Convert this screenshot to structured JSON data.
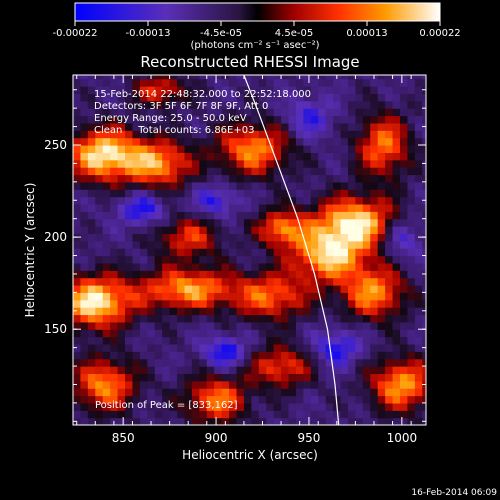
{
  "chart_data": {
    "type": "heatmap",
    "title": "Reconstructed RHESSI Image",
    "xlabel": "Heliocentric X (arcsec)",
    "ylabel": "Heliocentric Y (arcsec)",
    "x_ticks": [
      850,
      900,
      950,
      1000
    ],
    "y_ticks": [
      150,
      200,
      250
    ],
    "xlim": [
      823,
      1013
    ],
    "ylim": [
      98,
      288
    ],
    "colorbar": {
      "range": [
        -0.00022,
        0.00022
      ],
      "tick_labels": [
        "-0.00022",
        "-0.00013",
        "-4.5e-05",
        "4.5e-05",
        "0.00013",
        "0.00022"
      ],
      "units": "(photons cm⁻² s⁻¹ asec⁻²)"
    },
    "annotations": {
      "time_range": "15-Feb-2014 22:48:32.000 to 22:52:18.000",
      "detectors": "Detectors: 3F 5F 6F 7F 8F 9F, Att 0",
      "energy_range": "Energy Range: 25.0 - 50.0 keV",
      "clean": "Clean     Total counts: 6.86E+03",
      "peak": "Position of Peak = [833,162]"
    },
    "limb_curve": [
      [
        915,
        288
      ],
      [
        922,
        270
      ],
      [
        933,
        240
      ],
      [
        944,
        210
      ],
      [
        953,
        180
      ],
      [
        960,
        150
      ],
      [
        964,
        120
      ],
      [
        966,
        98
      ]
    ],
    "blobs": [
      {
        "x": 840,
        "y": 245,
        "sx": 14,
        "sy": 10,
        "a": 1.0
      },
      {
        "x": 870,
        "y": 240,
        "sx": 12,
        "sy": 9,
        "a": 0.75
      },
      {
        "x": 920,
        "y": 248,
        "sx": 14,
        "sy": 10,
        "a": 0.75
      },
      {
        "x": 885,
        "y": 200,
        "sx": 12,
        "sy": 8,
        "a": 0.55
      },
      {
        "x": 935,
        "y": 205,
        "sx": 9,
        "sy": 7,
        "a": 0.7
      },
      {
        "x": 975,
        "y": 208,
        "sx": 16,
        "sy": 10,
        "a": 0.95
      },
      {
        "x": 960,
        "y": 190,
        "sx": 14,
        "sy": 10,
        "a": 0.85
      },
      {
        "x": 990,
        "y": 250,
        "sx": 10,
        "sy": 12,
        "a": 0.7
      },
      {
        "x": 835,
        "y": 165,
        "sx": 14,
        "sy": 10,
        "a": 1.0
      },
      {
        "x": 885,
        "y": 172,
        "sx": 18,
        "sy": 8,
        "a": 0.8
      },
      {
        "x": 930,
        "y": 168,
        "sx": 14,
        "sy": 9,
        "a": 0.65
      },
      {
        "x": 985,
        "y": 170,
        "sx": 12,
        "sy": 10,
        "a": 0.75
      },
      {
        "x": 840,
        "y": 120,
        "sx": 12,
        "sy": 10,
        "a": 0.75
      },
      {
        "x": 900,
        "y": 112,
        "sx": 12,
        "sy": 9,
        "a": 0.7
      },
      {
        "x": 935,
        "y": 130,
        "sx": 12,
        "sy": 8,
        "a": 0.6
      },
      {
        "x": 1000,
        "y": 120,
        "sx": 12,
        "sy": 10,
        "a": 0.8
      },
      {
        "x": 905,
        "y": 138,
        "sx": 8,
        "sy": 6,
        "a": -0.55
      },
      {
        "x": 965,
        "y": 140,
        "sx": 9,
        "sy": 7,
        "a": -0.5
      },
      {
        "x": 900,
        "y": 220,
        "sx": 8,
        "sy": 6,
        "a": -0.45
      },
      {
        "x": 860,
        "y": 215,
        "sx": 9,
        "sy": 6,
        "a": -0.5
      },
      {
        "x": 1000,
        "y": 200,
        "sx": 8,
        "sy": 8,
        "a": -0.45
      },
      {
        "x": 950,
        "y": 265,
        "sx": 9,
        "sy": 8,
        "a": -0.4
      },
      {
        "x": 870,
        "y": 280,
        "sx": 10,
        "sy": 6,
        "a": 0.55
      }
    ]
  },
  "timestamp": "16-Feb-2014 06:09"
}
